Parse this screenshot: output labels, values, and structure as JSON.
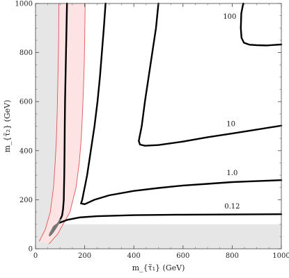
{
  "chart_data": {
    "type": "line",
    "title": "",
    "xlabel": "m_{τ̃₁} (GeV)",
    "ylabel": "m_{τ̃₂} (GeV)",
    "xlim": [
      0,
      1000
    ],
    "ylim": [
      0,
      1000
    ],
    "xticks": [
      0,
      200,
      400,
      600,
      800,
      1000
    ],
    "yticks": [
      0,
      200,
      400,
      600,
      800,
      1000
    ],
    "grid": false,
    "excluded_regions": [
      {
        "color": "#e6e6e6",
        "polygon": [
          [
            0,
            0
          ],
          [
            1000,
            0
          ],
          [
            1000,
            100
          ],
          [
            100,
            100
          ],
          [
            100,
            1000
          ],
          [
            0,
            1000
          ]
        ]
      }
    ],
    "band": {
      "color": "#fde3e3",
      "edge_color": "#e05555",
      "left": [
        [
          15,
          30
        ],
        [
          40,
          80
        ],
        [
          60,
          150
        ],
        [
          73,
          250
        ],
        [
          80,
          350
        ],
        [
          85,
          450
        ],
        [
          88,
          550
        ],
        [
          90,
          650
        ],
        [
          92,
          750
        ],
        [
          94,
          850
        ],
        [
          95,
          1000
        ]
      ],
      "right": [
        [
          55,
          20
        ],
        [
          90,
          60
        ],
        [
          140,
          150
        ],
        [
          165,
          250
        ],
        [
          178,
          350
        ],
        [
          186,
          450
        ],
        [
          191,
          550
        ],
        [
          195,
          650
        ],
        [
          198,
          750
        ],
        [
          200,
          850
        ],
        [
          202,
          1000
        ]
      ]
    },
    "series": [
      {
        "label": "0.12",
        "label_pos": [
          800,
          172
        ],
        "points": [
          [
            128,
            1000
          ],
          [
            126,
            900
          ],
          [
            124,
            800
          ],
          [
            122,
            700
          ],
          [
            120,
            600
          ],
          [
            119,
            500
          ],
          [
            118,
            400
          ],
          [
            117,
            300
          ],
          [
            116,
            250
          ],
          [
            115,
            200
          ],
          [
            112,
            160
          ],
          [
            108,
            135
          ],
          [
            100,
            118
          ],
          [
            90,
            100
          ],
          [
            80,
            83
          ],
          [
            70,
            68
          ],
          [
            63,
            60
          ],
          [
            58,
            55
          ],
          [
            60,
            62
          ],
          [
            75,
            90
          ],
          [
            95,
            105
          ],
          [
            130,
            118
          ],
          [
            180,
            128
          ],
          [
            250,
            133
          ],
          [
            400,
            137
          ],
          [
            600,
            139
          ],
          [
            800,
            140
          ],
          [
            1000,
            141
          ]
        ]
      },
      {
        "label": "1.0",
        "label_pos": [
          800,
          307
        ],
        "points": [
          [
            285,
            1000
          ],
          [
            278,
            900
          ],
          [
            270,
            800
          ],
          [
            262,
            700
          ],
          [
            252,
            600
          ],
          [
            240,
            500
          ],
          [
            225,
            400
          ],
          [
            210,
            300
          ],
          [
            200,
            250
          ],
          [
            195,
            225
          ],
          [
            190,
            200
          ],
          [
            185,
            185
          ],
          [
            200,
            182
          ],
          [
            240,
            200
          ],
          [
            300,
            218
          ],
          [
            400,
            236
          ],
          [
            500,
            248
          ],
          [
            600,
            258
          ],
          [
            700,
            265
          ],
          [
            800,
            272
          ],
          [
            900,
            276
          ],
          [
            1000,
            280
          ]
        ]
      },
      {
        "label": "10",
        "label_pos": [
          795,
          507
        ],
        "points": [
          [
            500,
            1000
          ],
          [
            490,
            900
          ],
          [
            475,
            800
          ],
          [
            460,
            700
          ],
          [
            445,
            600
          ],
          [
            432,
            500
          ],
          [
            420,
            440
          ],
          [
            425,
            425
          ],
          [
            445,
            420
          ],
          [
            500,
            423
          ],
          [
            600,
            437
          ],
          [
            700,
            455
          ],
          [
            800,
            470
          ],
          [
            900,
            486
          ],
          [
            1000,
            502
          ]
        ]
      },
      {
        "label": "100",
        "label_pos": [
          790,
          945
        ],
        "points": [
          [
            845,
            1000
          ],
          [
            837,
            960
          ],
          [
            835,
            900
          ],
          [
            838,
            860
          ],
          [
            848,
            840
          ],
          [
            870,
            832
          ],
          [
            900,
            830
          ],
          [
            940,
            829
          ],
          [
            970,
            831
          ],
          [
            1000,
            833
          ]
        ]
      }
    ]
  }
}
